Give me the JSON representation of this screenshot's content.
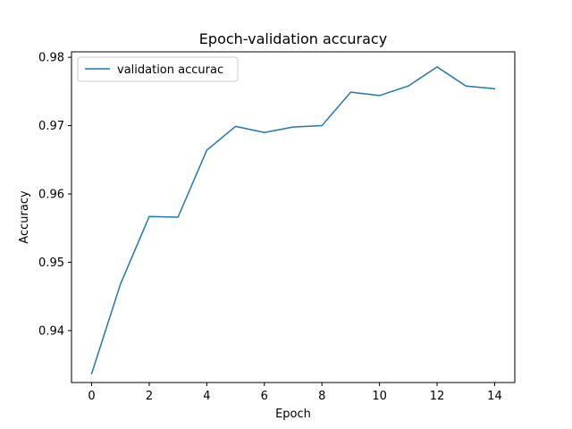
{
  "chart_data": {
    "type": "line",
    "title": "Epoch-validation accuracy",
    "xlabel": "Epoch",
    "ylabel": "Accuracy",
    "xlim": [
      -0.7,
      14.7
    ],
    "ylim": [
      0.9324,
      0.9808
    ],
    "xticks": [
      0,
      2,
      4,
      6,
      8,
      10,
      12,
      14
    ],
    "yticks": [
      0.94,
      0.95,
      0.96,
      0.97,
      0.98
    ],
    "ytick_labels": [
      "0.94",
      "0.95",
      "0.96",
      "0.97",
      "0.98"
    ],
    "legend_position": "upper-left",
    "grid": false,
    "series": [
      {
        "name": "validation accurac",
        "color": "#1f77b4",
        "x": [
          0,
          1,
          2,
          3,
          4,
          5,
          6,
          7,
          8,
          9,
          10,
          11,
          12,
          13,
          14
        ],
        "y": [
          0.9337,
          0.9468,
          0.9567,
          0.9566,
          0.9664,
          0.9699,
          0.969,
          0.9698,
          0.97,
          0.9749,
          0.9744,
          0.9758,
          0.9786,
          0.9758,
          0.9754
        ]
      }
    ]
  }
}
